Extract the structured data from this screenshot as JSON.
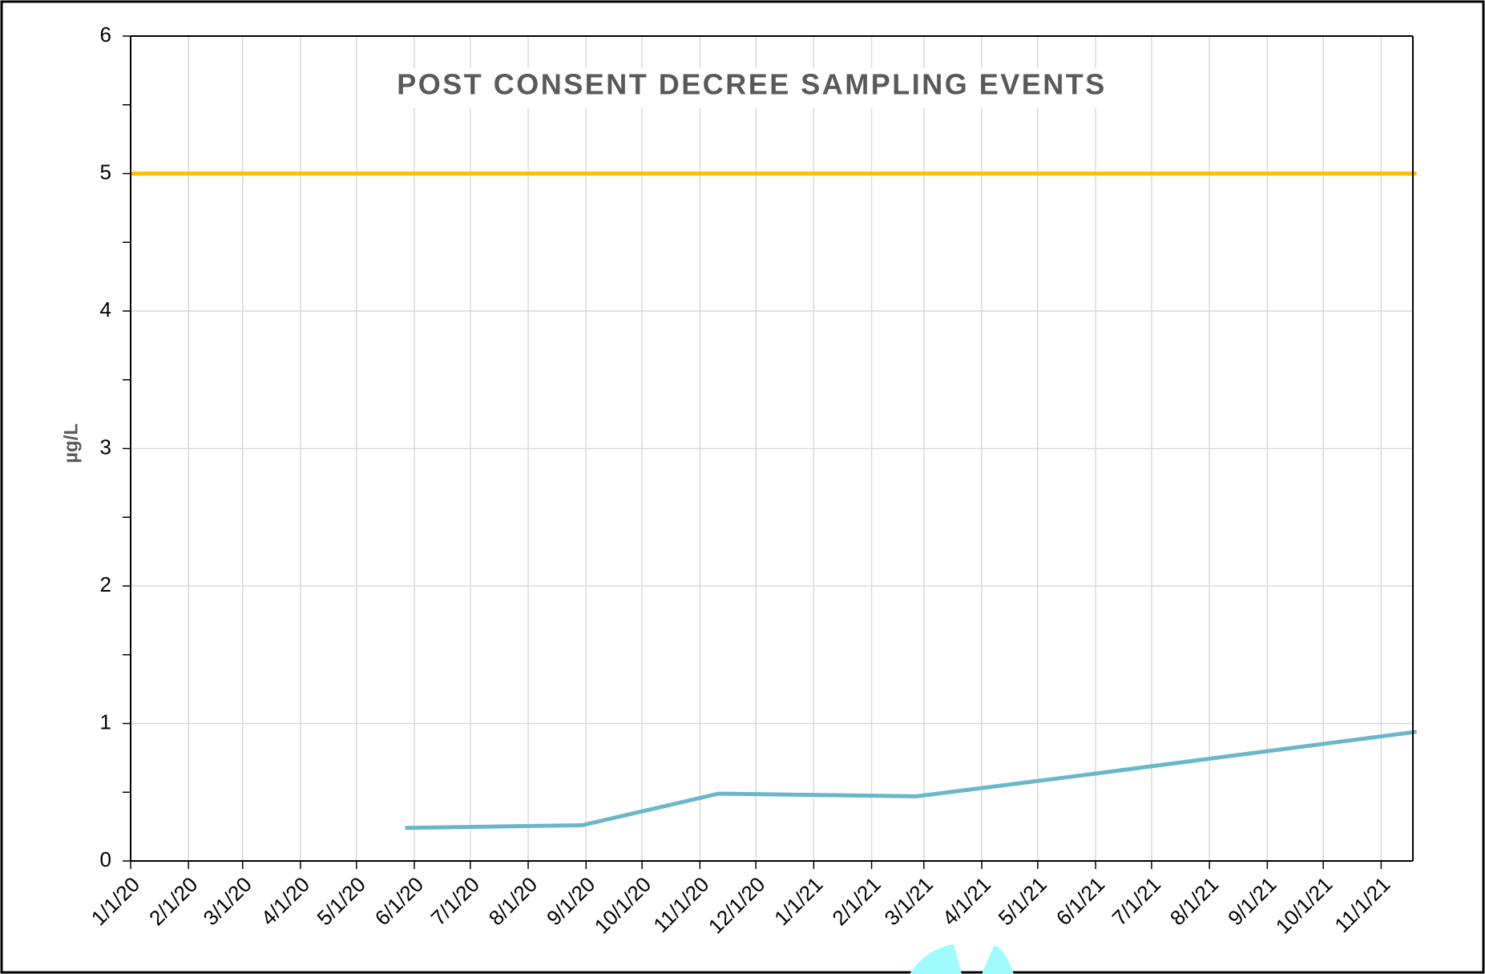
{
  "chart_data": {
    "type": "line",
    "title": "POST CONSENT DECREE SAMPLING EVENTS",
    "ylabel": "µg/L",
    "series": [
      {
        "color": "#ffc000",
        "x": [
          "1/1/20",
          "11/20/21"
        ],
        "values": [
          5,
          5
        ]
      },
      {
        "color": "#6ab7c9",
        "x": [
          "5/27/20",
          "8/30/20",
          "11/11/20",
          "2/25/21",
          "5/23/21",
          "11/20/21"
        ],
        "values": [
          0.24,
          0.26,
          0.49,
          0.47,
          0.62,
          0.94
        ]
      }
    ],
    "xlim": [
      "1/1/20",
      "11/18/21"
    ],
    "xticks": [
      "1/1/20",
      "2/1/20",
      "3/1/20",
      "4/1/20",
      "5/1/20",
      "6/1/20",
      "7/1/20",
      "8/1/20",
      "9/1/20",
      "10/1/20",
      "11/1/20",
      "12/1/20",
      "1/1/21",
      "2/1/21",
      "3/1/21",
      "4/1/21",
      "5/1/21",
      "6/1/21",
      "7/1/21",
      "8/1/21",
      "9/1/21",
      "10/1/21",
      "11/1/21"
    ],
    "ylim": [
      0,
      6
    ],
    "yticks": [
      0,
      1,
      2,
      3,
      4,
      5,
      6
    ],
    "grid": true
  }
}
